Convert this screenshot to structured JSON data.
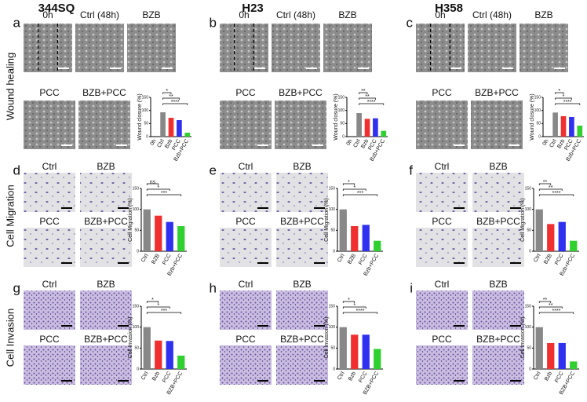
{
  "columns": [
    "344SQ",
    "H23",
    "H358"
  ],
  "rows": [
    "Wound healing",
    "Cell Migration",
    "Cell Invasion"
  ],
  "panels": [
    {
      "letter": "a",
      "images": [
        "0h",
        "Ctrl (48h)",
        "BZB",
        "PCC",
        "BZB+PCC"
      ]
    },
    {
      "letter": "b",
      "images": [
        "0h",
        "Ctrl (48h)",
        "BZB",
        "PCC",
        "BZB+PCC"
      ]
    },
    {
      "letter": "c",
      "images": [
        "0h",
        "Ctrl (48h)",
        "BZB",
        "PCC",
        "BZB+PCC"
      ]
    },
    {
      "letter": "d",
      "images": [
        "Ctrl",
        "BZB",
        "PCC",
        "BZB+PCC"
      ]
    },
    {
      "letter": "e",
      "images": [
        "Ctrl",
        "BZB",
        "PCC",
        "BZB+PCC"
      ]
    },
    {
      "letter": "f",
      "images": [
        "Ctrl",
        "BZB",
        "PCC",
        "BZB+PCC"
      ]
    },
    {
      "letter": "g",
      "images": [
        "Ctrl",
        "BZB",
        "PCC",
        "BZB+PCC"
      ]
    },
    {
      "letter": "h",
      "images": [
        "Ctrl",
        "BZB",
        "PCC",
        "BZB+PCC"
      ]
    },
    {
      "letter": "i",
      "images": [
        "Ctrl",
        "BZB",
        "PCC",
        "BZB+PCC"
      ]
    }
  ],
  "chart_data": [
    {
      "type": "bar",
      "ylabel": "Wound closure (%)",
      "categories": [
        "0h",
        "Ctrl",
        "Bzb",
        "PCC",
        "Bzb+PCC"
      ],
      "values": [
        0,
        93,
        72,
        63,
        15
      ],
      "colors": [
        "#888888",
        "#888888",
        "#f03030",
        "#3030f0",
        "#30d030"
      ],
      "ylim": [
        0,
        150
      ],
      "yticks": [
        0,
        50,
        100,
        150
      ],
      "significance": [
        "*",
        "**",
        "****"
      ]
    },
    {
      "type": "bar",
      "ylabel": "Wound closure (%)",
      "categories": [
        "0h",
        "Ctrl",
        "Bzb",
        "PCC",
        "Bzb+PCC"
      ],
      "values": [
        0,
        90,
        68,
        70,
        22
      ],
      "colors": [
        "#888888",
        "#888888",
        "#f03030",
        "#3030f0",
        "#30d030"
      ],
      "ylim": [
        0,
        150
      ],
      "yticks": [
        0,
        50,
        100,
        150
      ],
      "significance": [
        "**",
        "**",
        "****"
      ]
    },
    {
      "type": "bar",
      "ylabel": "Wound closure (%)",
      "categories": [
        "0h",
        "Ctrl",
        "Bzb",
        "PCC",
        "Bzb+PCC"
      ],
      "values": [
        0,
        92,
        78,
        75,
        42
      ],
      "colors": [
        "#888888",
        "#888888",
        "#f03030",
        "#3030f0",
        "#30d030"
      ],
      "ylim": [
        0,
        150
      ],
      "yticks": [
        0,
        50,
        100,
        150
      ],
      "significance": [
        "*",
        "*",
        "****"
      ]
    },
    {
      "type": "bar",
      "ylabel": "Cell Migration (%)",
      "categories": [
        "Ctrl",
        "BZB",
        "PCC",
        "Bzb+PCC"
      ],
      "values": [
        100,
        85,
        70,
        60
      ],
      "colors": [
        "#888888",
        "#f03030",
        "#3030f0",
        "#30d030"
      ],
      "ylim": [
        0,
        150
      ],
      "yticks": [
        0,
        50,
        100,
        150
      ],
      "significance": [
        "ns",
        "*",
        "***"
      ]
    },
    {
      "type": "bar",
      "ylabel": "Cell Migration (%)",
      "categories": [
        "Ctrl",
        "BZB",
        "PCC",
        "Bzb+PCC"
      ],
      "values": [
        100,
        60,
        63,
        25
      ],
      "colors": [
        "#888888",
        "#f03030",
        "#3030f0",
        "#30d030"
      ],
      "ylim": [
        0,
        150
      ],
      "yticks": [
        0,
        50,
        100,
        150
      ],
      "significance": [
        "*",
        "*",
        "***"
      ]
    },
    {
      "type": "bar",
      "ylabel": "Cell Migration (%)",
      "categories": [
        "Ctrl",
        "BZB",
        "PCC",
        "Bzb+PCC"
      ],
      "values": [
        100,
        65,
        70,
        25
      ],
      "colors": [
        "#888888",
        "#f03030",
        "#3030f0",
        "#30d030"
      ],
      "ylim": [
        0,
        150
      ],
      "yticks": [
        0,
        50,
        100,
        150
      ],
      "significance": [
        "**",
        "**",
        "****"
      ]
    },
    {
      "type": "bar",
      "ylabel": "Cell Invasion (%)",
      "categories": [
        "Ctrl",
        "Bzb",
        "PCC",
        "BZB+PCC"
      ],
      "values": [
        100,
        68,
        67,
        32
      ],
      "colors": [
        "#888888",
        "#f03030",
        "#3030f0",
        "#30d030"
      ],
      "ylim": [
        0,
        150
      ],
      "yticks": [
        0,
        50,
        100,
        150
      ],
      "significance": [
        "*",
        "*",
        "***"
      ]
    },
    {
      "type": "bar",
      "ylabel": "Cell Invasion (%)",
      "categories": [
        "Ctrl",
        "Bzb",
        "PCC",
        "BZB+PCC"
      ],
      "values": [
        100,
        82,
        82,
        48
      ],
      "colors": [
        "#888888",
        "#f03030",
        "#3030f0",
        "#30d030"
      ],
      "ylim": [
        0,
        150
      ],
      "yticks": [
        0,
        50,
        100,
        150
      ],
      "significance": [
        "*",
        "*",
        "****"
      ]
    },
    {
      "type": "bar",
      "ylabel": "Cell Invasion (%)",
      "categories": [
        "Ctrl",
        "Bzb",
        "PCC",
        "BZB+PCC"
      ],
      "values": [
        100,
        62,
        62,
        18
      ],
      "colors": [
        "#888888",
        "#f03030",
        "#3030f0",
        "#30d030"
      ],
      "ylim": [
        0,
        150
      ],
      "yticks": [
        0,
        50,
        100,
        150
      ],
      "significance": [
        "**",
        "**",
        "****"
      ]
    }
  ]
}
